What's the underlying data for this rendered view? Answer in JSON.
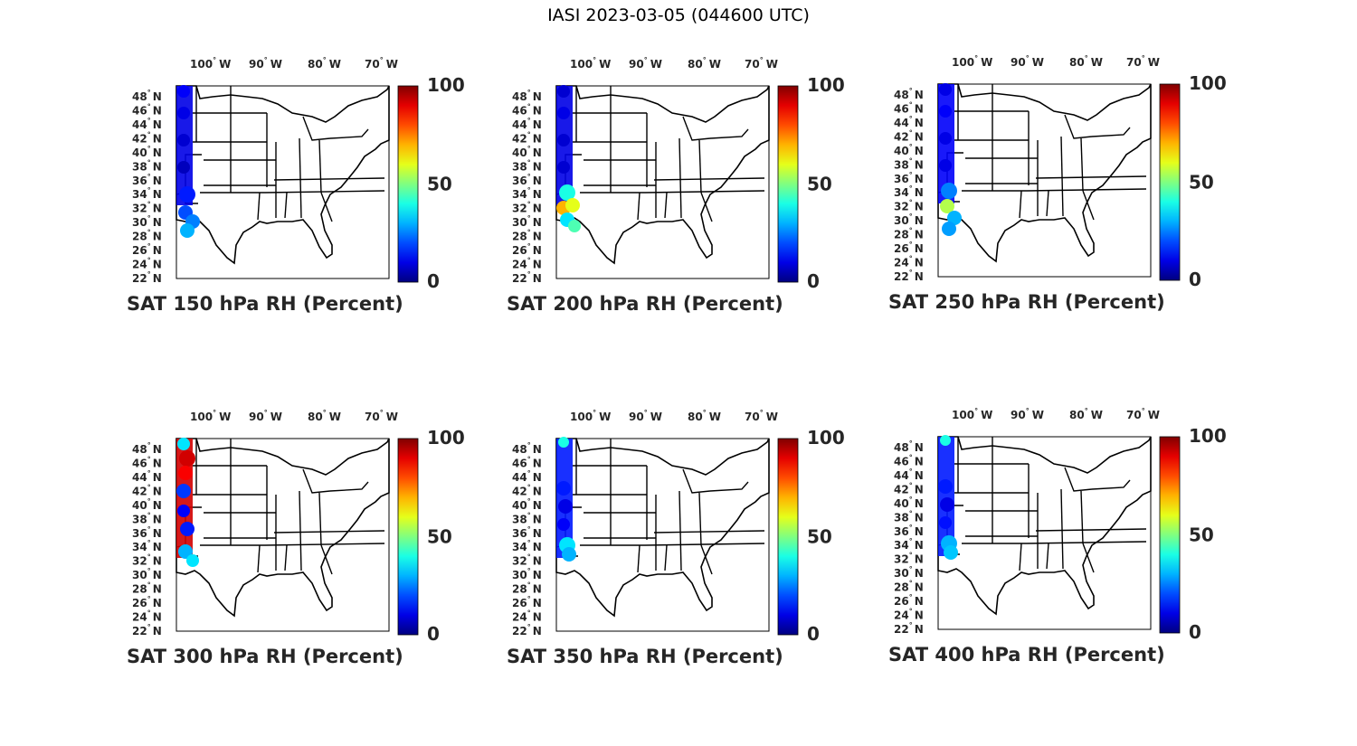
{
  "figure": {
    "title": "IASI 2023-03-05 (044600 UTC)"
  },
  "map": {
    "lon_ticks": [
      {
        "deg": "100",
        "hem": "W"
      },
      {
        "deg": "90",
        "hem": "W"
      },
      {
        "deg": "80",
        "hem": "W"
      },
      {
        "deg": "70",
        "hem": "W"
      }
    ],
    "lat_ticks": [
      {
        "deg": "48",
        "hem": "N"
      },
      {
        "deg": "46",
        "hem": "N"
      },
      {
        "deg": "44",
        "hem": "N"
      },
      {
        "deg": "42",
        "hem": "N"
      },
      {
        "deg": "40",
        "hem": "N"
      },
      {
        "deg": "38",
        "hem": "N"
      },
      {
        "deg": "36",
        "hem": "N"
      },
      {
        "deg": "34",
        "hem": "N"
      },
      {
        "deg": "32",
        "hem": "N"
      },
      {
        "deg": "30",
        "hem": "N"
      },
      {
        "deg": "28",
        "hem": "N"
      },
      {
        "deg": "26",
        "hem": "N"
      },
      {
        "deg": "24",
        "hem": "N"
      },
      {
        "deg": "22",
        "hem": "N"
      }
    ],
    "degree_symbol": "°"
  },
  "colorbar": {
    "colormap": "jet",
    "ticks": [
      "100",
      "50",
      "0"
    ],
    "range": [
      0,
      100
    ]
  },
  "colors": {
    "axes": "#000000",
    "text": "#262626"
  },
  "panels": [
    {
      "title": "SAT 150 hPa RH (Percent)"
    },
    {
      "title": "SAT 200 hPa RH (Percent)"
    },
    {
      "title": "SAT 250 hPa RH (Percent)"
    },
    {
      "title": "SAT 300 hPa RH (Percent)"
    },
    {
      "title": "SAT 350 hPa RH (Percent)"
    },
    {
      "title": "SAT 400 hPa RH (Percent)"
    }
  ]
}
